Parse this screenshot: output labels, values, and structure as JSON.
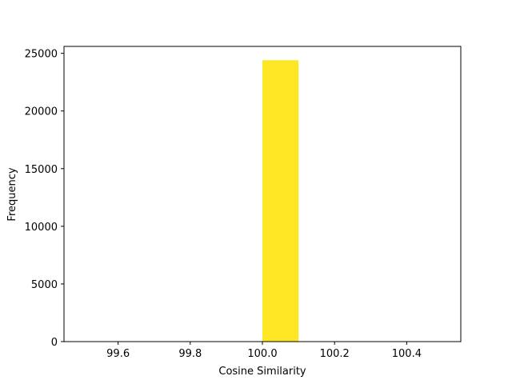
{
  "chart_data": {
    "type": "bar",
    "title": "",
    "xlabel": "Cosine Similarity",
    "ylabel": "Frequency",
    "xlim": [
      99.45,
      100.55
    ],
    "ylim": [
      0,
      25600
    ],
    "x_ticks": [
      99.6,
      99.8,
      100.0,
      100.2,
      100.4
    ],
    "x_tick_labels": [
      "99.6",
      "99.8",
      "100.0",
      "100.2",
      "100.4"
    ],
    "y_ticks": [
      0,
      5000,
      10000,
      15000,
      20000,
      25000
    ],
    "y_tick_labels": [
      "0",
      "5000",
      "10000",
      "15000",
      "20000",
      "25000"
    ],
    "bins": [
      {
        "x0": 100.0,
        "x1": 100.1,
        "value": 24400
      }
    ],
    "bar_color": "#fde725",
    "grid": false,
    "legend": "none"
  }
}
